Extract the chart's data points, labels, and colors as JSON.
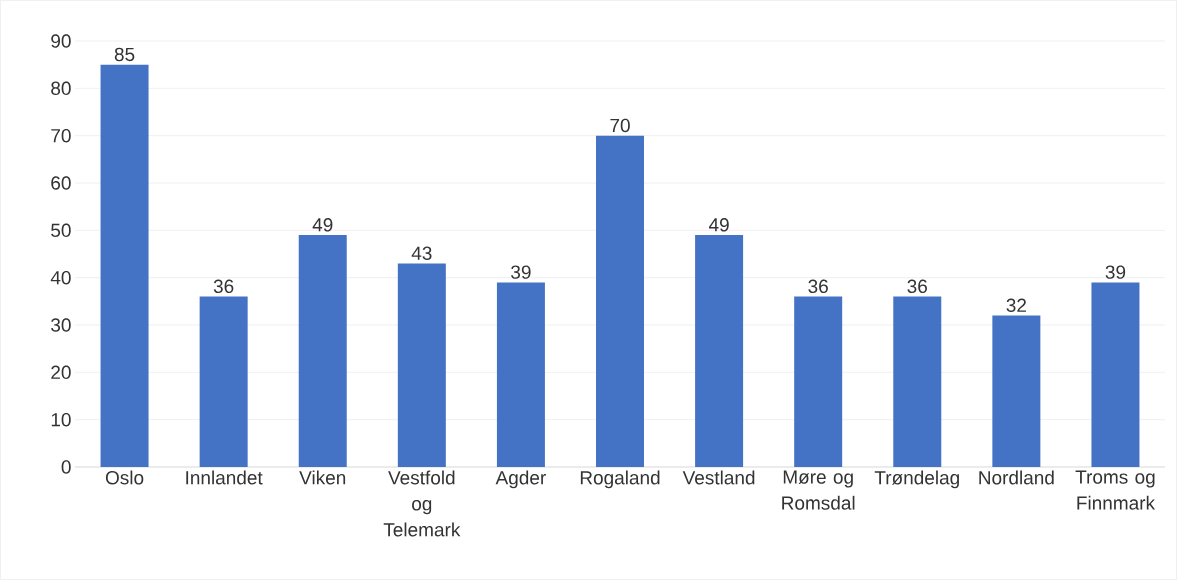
{
  "chart_data": {
    "type": "bar",
    "categories": [
      "Oslo",
      "Innlandet",
      "Viken",
      "Vestfold og Telemark",
      "Agder",
      "Rogaland",
      "Vestland",
      "Møre og Romsdal",
      "Trøndelag",
      "Nordland",
      "Troms og Finnmark"
    ],
    "values": [
      85,
      36,
      49,
      43,
      39,
      70,
      49,
      36,
      36,
      32,
      39
    ],
    "color": "#4472c4",
    "ylim": [
      0,
      90
    ],
    "yticks": [
      0,
      10,
      20,
      30,
      40,
      50,
      60,
      70,
      80,
      90
    ],
    "grid": "y",
    "data_labels": true
  }
}
